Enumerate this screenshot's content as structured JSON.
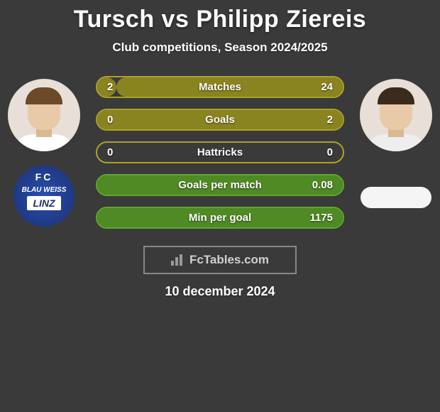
{
  "title": "Tursch vs Philipp Ziereis",
  "subtitle": "Club competitions, Season 2024/2025",
  "date": "10 december 2024",
  "watermark": "FcTables.com",
  "colors": {
    "background": "#3a3a3a",
    "pill_border_olive": "#a9a22c",
    "pill_border_green": "#5fa82c",
    "fill_olive": "#8a8420",
    "fill_green": "#4f8a24",
    "text": "#ffffff"
  },
  "player_left": {
    "name": "Tursch",
    "club_top": "FC",
    "club_mid": "BLAU WEISS",
    "club_bottom": "LINZ"
  },
  "player_right": {
    "name": "Philipp Ziereis"
  },
  "stats": [
    {
      "label": "Matches",
      "left_value": "2",
      "right_value": "24",
      "color_variant": "olive",
      "left_fill_pct": 7.7,
      "right_fill_pct": 92.3
    },
    {
      "label": "Goals",
      "left_value": "0",
      "right_value": "2",
      "color_variant": "olive",
      "left_fill_pct": 0,
      "right_fill_pct": 100
    },
    {
      "label": "Hattricks",
      "left_value": "0",
      "right_value": "0",
      "color_variant": "olive",
      "left_fill_pct": 0,
      "right_fill_pct": 0
    },
    {
      "label": "Goals per match",
      "left_value": "",
      "right_value": "0.08",
      "color_variant": "green",
      "left_fill_pct": 0,
      "right_fill_pct": 100
    },
    {
      "label": "Min per goal",
      "left_value": "",
      "right_value": "1175",
      "color_variant": "green",
      "left_fill_pct": 0,
      "right_fill_pct": 100
    }
  ],
  "typography": {
    "title_fontsize": 34,
    "subtitle_fontsize": 17,
    "stat_fontsize": 15,
    "date_fontsize": 18,
    "watermark_fontsize": 17
  }
}
